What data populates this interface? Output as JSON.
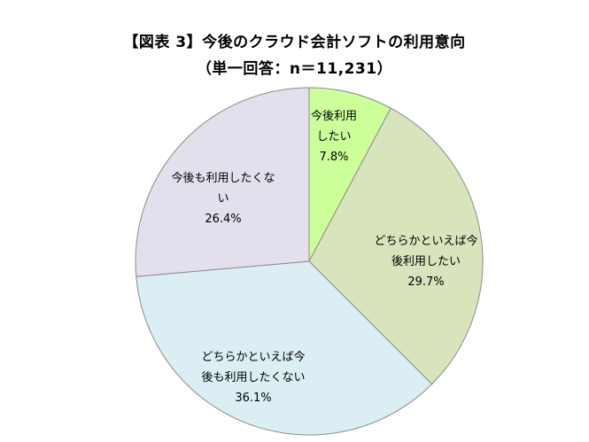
{
  "chart_data": {
    "type": "pie",
    "title": "【図表 3】今後のクラウド会計ソフトの利用意向",
    "subtitle": "（単一回答：n＝11,231）",
    "unit": "%",
    "slices": [
      {
        "label_lines": [
          "今後利用",
          "したい"
        ],
        "value": 7.8,
        "value_label": "7.8%",
        "color": "#ccff99"
      },
      {
        "label_lines": [
          "どちらかといえば今",
          "後利用したい"
        ],
        "value": 29.7,
        "value_label": "29.7%",
        "color": "#d8e4bc"
      },
      {
        "label_lines": [
          "どちらかといえば今",
          "後も利用したくない"
        ],
        "value": 36.1,
        "value_label": "36.1%",
        "color": "#dbeef4"
      },
      {
        "label_lines": [
          "今後も利用したくな",
          "い"
        ],
        "value": 26.4,
        "value_label": "26.4%",
        "color": "#e4dfec"
      }
    ]
  }
}
